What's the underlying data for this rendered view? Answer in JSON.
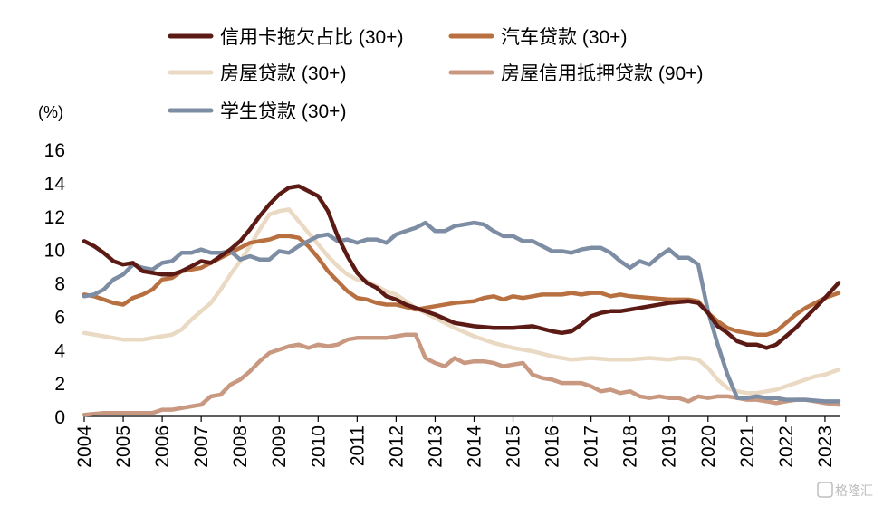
{
  "chart_data": {
    "type": "line",
    "title": "",
    "xlabel": "",
    "ylabel": "(%)",
    "ylim": [
      0,
      16
    ],
    "yticks": [
      0,
      2,
      4,
      6,
      8,
      10,
      12,
      14,
      16
    ],
    "xlim": [
      2004,
      2023.35
    ],
    "xticks": [
      "2004",
      "2005",
      "2006",
      "2007",
      "2008",
      "2009",
      "2010",
      "2011",
      "2012",
      "2013",
      "2014",
      "2015",
      "2016",
      "2017",
      "2018",
      "2019",
      "2020",
      "2021",
      "2022",
      "2023"
    ],
    "grid": false,
    "legend_position": "top",
    "series": [
      {
        "name": "信用卡拖欠占比 (30+)",
        "color": "#5c1a14",
        "x": [
          2004,
          2004.25,
          2004.5,
          2004.75,
          2005,
          2005.25,
          2005.5,
          2005.75,
          2006,
          2006.25,
          2006.5,
          2006.75,
          2007,
          2007.25,
          2007.5,
          2007.75,
          2008,
          2008.25,
          2008.5,
          2008.75,
          2009,
          2009.25,
          2009.5,
          2009.75,
          2010,
          2010.25,
          2010.5,
          2010.75,
          2011,
          2011.25,
          2011.5,
          2011.75,
          2012,
          2012.25,
          2012.5,
          2012.75,
          2013,
          2013.5,
          2014,
          2014.5,
          2015,
          2015.5,
          2016,
          2016.25,
          2016.5,
          2016.75,
          2017,
          2017.25,
          2017.5,
          2017.75,
          2018,
          2018.5,
          2019,
          2019.5,
          2019.75,
          2020,
          2020.25,
          2020.5,
          2020.75,
          2021,
          2021.25,
          2021.5,
          2021.75,
          2022,
          2022.25,
          2022.5,
          2022.75,
          2023,
          2023.35
        ],
        "values": [
          10.5,
          10.2,
          9.8,
          9.3,
          9.1,
          9.2,
          8.7,
          8.6,
          8.5,
          8.5,
          8.7,
          9.0,
          9.3,
          9.2,
          9.6,
          10.0,
          10.5,
          11.2,
          12.0,
          12.7,
          13.3,
          13.7,
          13.8,
          13.5,
          13.2,
          12.3,
          10.8,
          9.6,
          8.6,
          8.0,
          7.7,
          7.2,
          7.0,
          6.7,
          6.5,
          6.3,
          6.1,
          5.6,
          5.4,
          5.3,
          5.3,
          5.4,
          5.1,
          5.0,
          5.1,
          5.5,
          6.0,
          6.2,
          6.3,
          6.3,
          6.4,
          6.6,
          6.8,
          6.9,
          6.8,
          6.2,
          5.4,
          5.0,
          4.5,
          4.3,
          4.3,
          4.1,
          4.3,
          4.8,
          5.3,
          5.9,
          6.5,
          7.1,
          8.0
        ]
      },
      {
        "name": "汽车贷款 (30+)",
        "color": "#b87040",
        "x": [
          2004,
          2004.25,
          2004.5,
          2004.75,
          2005,
          2005.25,
          2005.5,
          2005.75,
          2006,
          2006.25,
          2006.5,
          2006.75,
          2007,
          2007.25,
          2007.5,
          2007.75,
          2008,
          2008.25,
          2008.5,
          2008.75,
          2009,
          2009.25,
          2009.5,
          2009.75,
          2010,
          2010.25,
          2010.5,
          2010.75,
          2011,
          2011.25,
          2011.5,
          2011.75,
          2012,
          2012.5,
          2013,
          2013.5,
          2014,
          2014.25,
          2014.5,
          2014.75,
          2015,
          2015.25,
          2015.5,
          2015.75,
          2016,
          2016.25,
          2016.5,
          2016.75,
          2017,
          2017.25,
          2017.5,
          2017.75,
          2018,
          2018.5,
          2019,
          2019.5,
          2019.75,
          2020,
          2020.25,
          2020.5,
          2020.75,
          2021,
          2021.25,
          2021.5,
          2021.75,
          2022,
          2022.25,
          2022.5,
          2022.75,
          2023,
          2023.35
        ],
        "values": [
          7.3,
          7.2,
          7.0,
          6.8,
          6.7,
          7.1,
          7.3,
          7.6,
          8.2,
          8.3,
          8.7,
          8.8,
          8.9,
          9.2,
          9.5,
          9.8,
          10.1,
          10.4,
          10.5,
          10.6,
          10.8,
          10.8,
          10.7,
          10.2,
          9.5,
          8.7,
          8.1,
          7.5,
          7.1,
          7.0,
          6.8,
          6.7,
          6.7,
          6.4,
          6.6,
          6.8,
          6.9,
          7.1,
          7.2,
          7.0,
          7.2,
          7.1,
          7.2,
          7.3,
          7.3,
          7.3,
          7.4,
          7.3,
          7.4,
          7.4,
          7.2,
          7.3,
          7.2,
          7.1,
          7.0,
          7.0,
          6.9,
          6.2,
          5.7,
          5.3,
          5.1,
          5.0,
          4.9,
          4.9,
          5.1,
          5.6,
          6.1,
          6.5,
          6.8,
          7.1,
          7.4
        ]
      },
      {
        "name": "房屋贷款 (30+)",
        "color": "#ead9c3",
        "x": [
          2004,
          2004.25,
          2004.5,
          2004.75,
          2005,
          2005.25,
          2005.5,
          2005.75,
          2006,
          2006.25,
          2006.5,
          2006.75,
          2007,
          2007.25,
          2007.5,
          2007.75,
          2008,
          2008.25,
          2008.5,
          2008.75,
          2009,
          2009.25,
          2009.5,
          2009.75,
          2010,
          2010.25,
          2010.5,
          2010.75,
          2011,
          2011.25,
          2011.5,
          2011.75,
          2012,
          2012.5,
          2013,
          2013.5,
          2014,
          2014.5,
          2015,
          2015.5,
          2016,
          2016.5,
          2017,
          2017.5,
          2018,
          2018.5,
          2019,
          2019.25,
          2019.5,
          2019.75,
          2020,
          2020.25,
          2020.5,
          2020.75,
          2021,
          2021.25,
          2021.5,
          2021.75,
          2022,
          2022.25,
          2022.5,
          2022.75,
          2023,
          2023.35
        ],
        "values": [
          5.0,
          4.9,
          4.8,
          4.7,
          4.6,
          4.6,
          4.6,
          4.7,
          4.8,
          4.9,
          5.2,
          5.8,
          6.3,
          6.8,
          7.6,
          8.5,
          9.3,
          10.2,
          11.2,
          12.1,
          12.3,
          12.4,
          11.7,
          11.0,
          10.3,
          9.6,
          9.0,
          8.5,
          8.2,
          8.1,
          7.8,
          7.5,
          7.3,
          6.5,
          5.9,
          5.3,
          4.8,
          4.4,
          4.1,
          3.9,
          3.6,
          3.4,
          3.5,
          3.4,
          3.4,
          3.5,
          3.4,
          3.5,
          3.5,
          3.4,
          2.9,
          2.2,
          1.7,
          1.5,
          1.4,
          1.4,
          1.5,
          1.6,
          1.8,
          2.0,
          2.2,
          2.4,
          2.5,
          2.8
        ]
      },
      {
        "name": "房屋信用抵押贷款 (90+)",
        "color": "#c89880",
        "x": [
          2004,
          2004.5,
          2005,
          2005.5,
          2005.75,
          2006,
          2006.25,
          2006.5,
          2006.75,
          2007,
          2007.25,
          2007.5,
          2007.75,
          2008,
          2008.25,
          2008.5,
          2008.75,
          2009,
          2009.25,
          2009.5,
          2009.75,
          2010,
          2010.25,
          2010.5,
          2010.75,
          2011,
          2011.25,
          2011.5,
          2011.75,
          2012,
          2012.25,
          2012.5,
          2012.75,
          2013,
          2013.25,
          2013.5,
          2013.75,
          2014,
          2014.25,
          2014.5,
          2014.75,
          2015,
          2015.25,
          2015.5,
          2015.75,
          2016,
          2016.25,
          2016.5,
          2016.75,
          2017,
          2017.25,
          2017.5,
          2017.75,
          2018,
          2018.25,
          2018.5,
          2018.75,
          2019,
          2019.25,
          2019.5,
          2019.75,
          2020,
          2020.25,
          2020.5,
          2020.75,
          2021,
          2021.25,
          2021.5,
          2021.75,
          2022,
          2022.25,
          2022.5,
          2022.75,
          2023,
          2023.35
        ],
        "values": [
          0.1,
          0.2,
          0.2,
          0.2,
          0.2,
          0.4,
          0.4,
          0.5,
          0.6,
          0.7,
          1.2,
          1.3,
          1.9,
          2.2,
          2.7,
          3.3,
          3.8,
          4.0,
          4.2,
          4.3,
          4.1,
          4.3,
          4.2,
          4.3,
          4.6,
          4.7,
          4.7,
          4.7,
          4.7,
          4.8,
          4.9,
          4.9,
          3.5,
          3.2,
          3.0,
          3.5,
          3.2,
          3.3,
          3.3,
          3.2,
          3.0,
          3.1,
          3.2,
          2.5,
          2.3,
          2.2,
          2.0,
          2.0,
          2.0,
          1.8,
          1.5,
          1.6,
          1.4,
          1.5,
          1.2,
          1.1,
          1.2,
          1.1,
          1.1,
          0.9,
          1.2,
          1.1,
          1.2,
          1.2,
          1.1,
          1.0,
          1.0,
          0.9,
          0.8,
          0.9,
          1.0,
          1.0,
          0.9,
          0.8,
          0.7
        ]
      },
      {
        "name": "学生贷款 (30+)",
        "color": "#7d8da4",
        "x": [
          2004,
          2004.25,
          2004.5,
          2004.75,
          2005,
          2005.25,
          2005.5,
          2005.75,
          2006,
          2006.25,
          2006.5,
          2006.75,
          2007,
          2007.25,
          2007.5,
          2007.75,
          2008,
          2008.25,
          2008.5,
          2008.75,
          2009,
          2009.25,
          2009.5,
          2009.75,
          2010,
          2010.25,
          2010.5,
          2010.75,
          2011,
          2011.25,
          2011.5,
          2011.75,
          2012,
          2012.25,
          2012.5,
          2012.75,
          2013,
          2013.25,
          2013.5,
          2013.75,
          2014,
          2014.25,
          2014.5,
          2014.75,
          2015,
          2015.25,
          2015.5,
          2015.75,
          2016,
          2016.25,
          2016.5,
          2016.75,
          2017,
          2017.25,
          2017.5,
          2017.75,
          2018,
          2018.25,
          2018.5,
          2018.75,
          2019,
          2019.25,
          2019.5,
          2019.75,
          2020,
          2020.25,
          2020.5,
          2020.75,
          2021,
          2021.25,
          2021.5,
          2021.75,
          2022,
          2022.5,
          2023,
          2023.35
        ],
        "values": [
          7.2,
          7.3,
          7.6,
          8.2,
          8.5,
          9.1,
          8.9,
          8.8,
          9.2,
          9.3,
          9.8,
          9.8,
          10.0,
          9.8,
          9.8,
          9.9,
          9.4,
          9.6,
          9.4,
          9.4,
          9.9,
          9.8,
          10.2,
          10.5,
          10.8,
          10.9,
          10.5,
          10.6,
          10.4,
          10.6,
          10.6,
          10.4,
          10.9,
          11.1,
          11.3,
          11.6,
          11.1,
          11.1,
          11.4,
          11.5,
          11.6,
          11.5,
          11.1,
          10.8,
          10.8,
          10.5,
          10.5,
          10.2,
          9.9,
          9.9,
          9.8,
          10.0,
          10.1,
          10.1,
          9.8,
          9.3,
          8.9,
          9.3,
          9.1,
          9.6,
          10.0,
          9.5,
          9.5,
          9.1,
          6.3,
          4.3,
          2.5,
          1.1,
          1.1,
          1.2,
          1.1,
          1.1,
          1.0,
          1.0,
          0.9,
          0.9
        ]
      }
    ]
  },
  "watermark": "格隆汇"
}
